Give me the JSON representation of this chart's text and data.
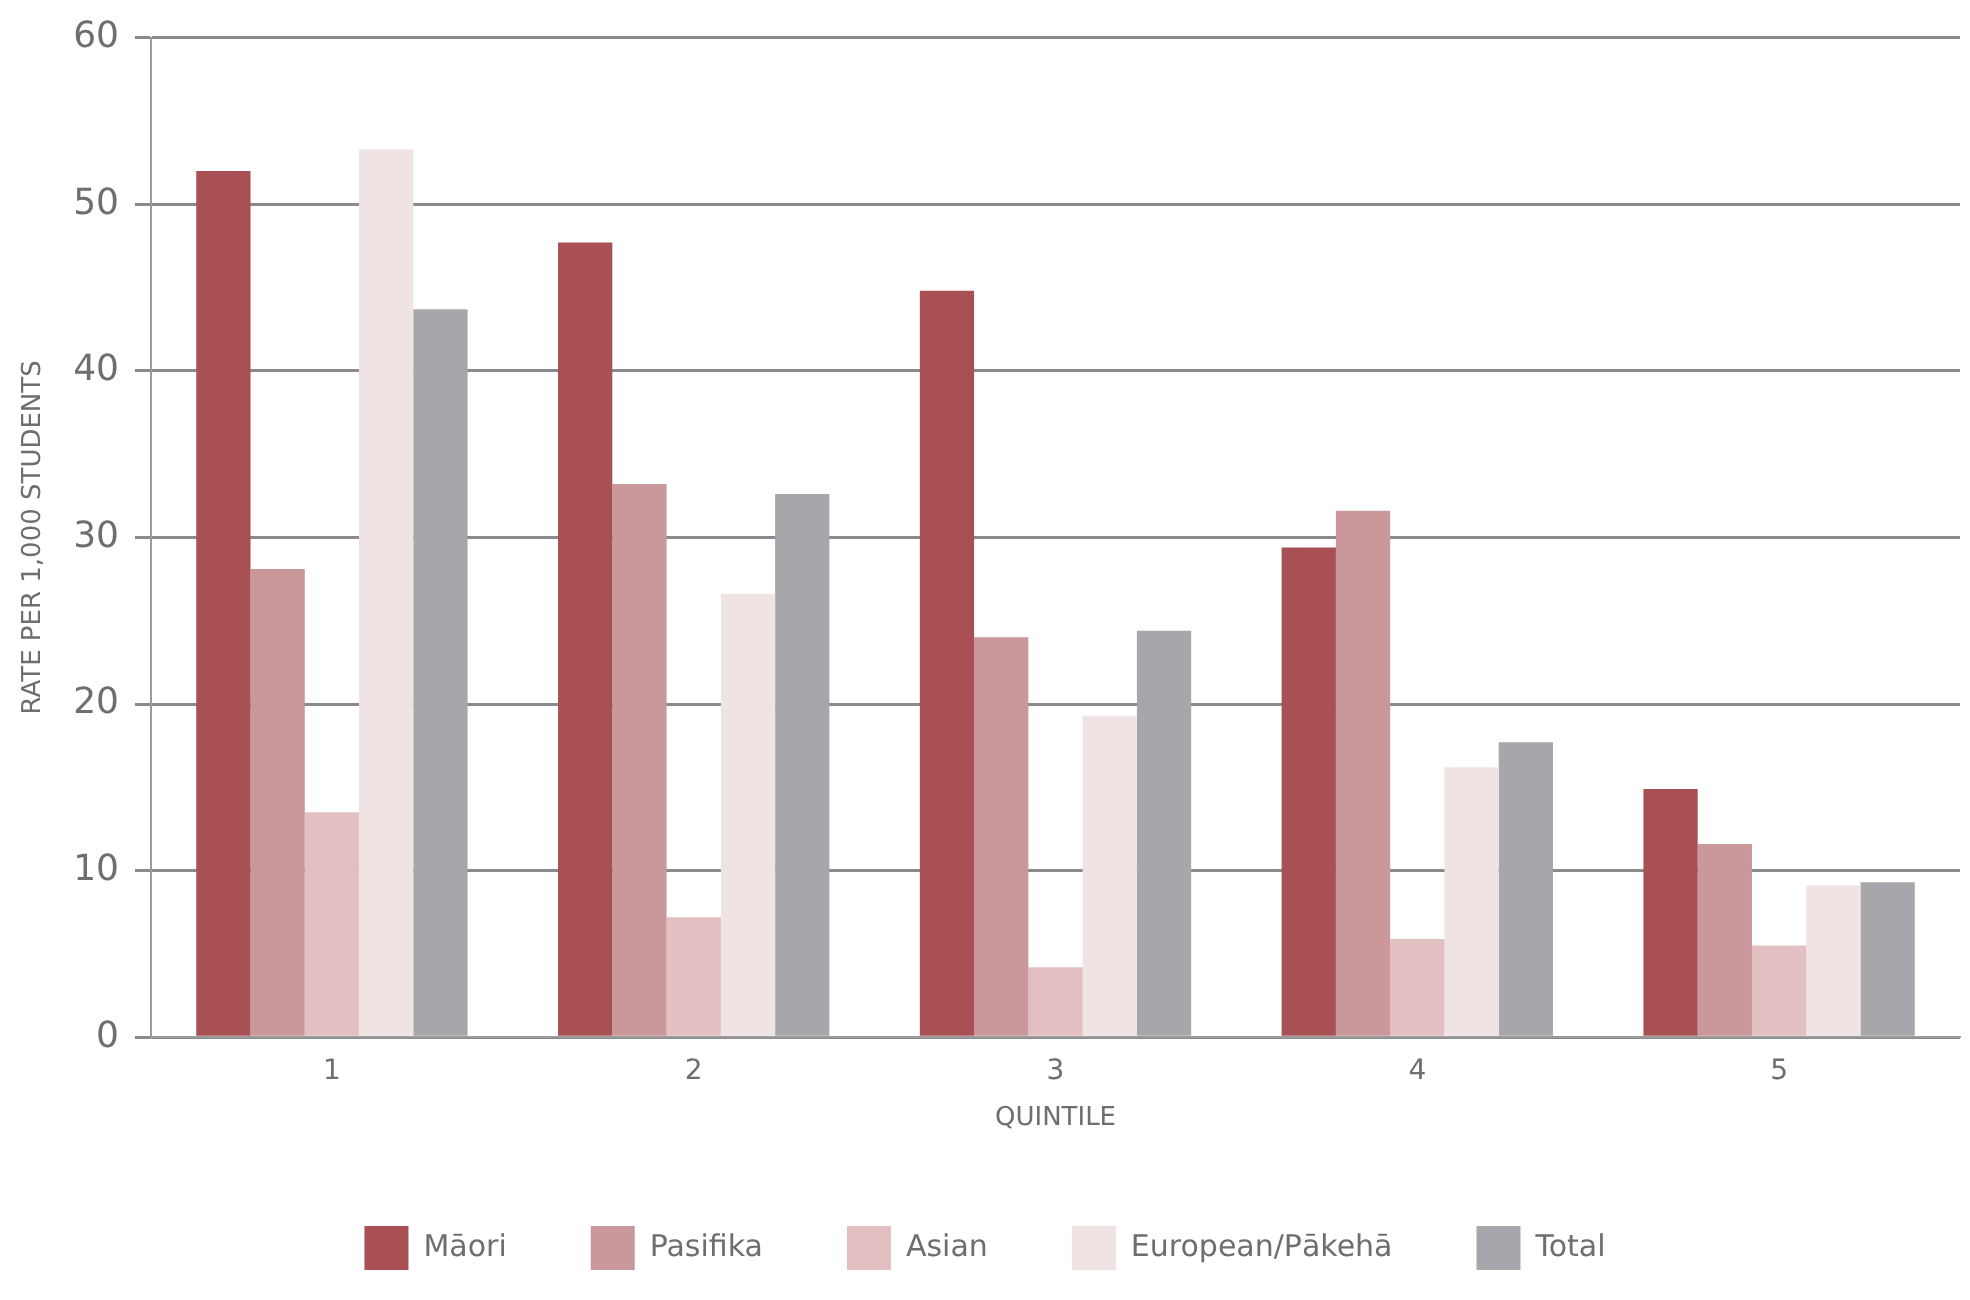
{
  "chart_data": {
    "type": "bar",
    "xlabel": "QUINTILE",
    "ylabel": "RATE PER 1,000 STUDENTS",
    "categories": [
      "1",
      "2",
      "3",
      "4",
      "5"
    ],
    "series": [
      {
        "name": "Māori",
        "color": "#a85054",
        "values": [
          52.0,
          47.7,
          44.8,
          29.4,
          14.9
        ]
      },
      {
        "name": "Pasifika",
        "color": "#ca979a",
        "values": [
          28.1,
          33.2,
          24.0,
          31.6,
          11.6
        ]
      },
      {
        "name": "Asian",
        "color": "#e2c0c2",
        "values": [
          13.5,
          7.2,
          4.2,
          5.9,
          5.5
        ]
      },
      {
        "name": "European/Pākehā",
        "color": "#f0e3e4",
        "values": [
          53.3,
          26.6,
          19.3,
          16.2,
          9.1
        ]
      },
      {
        "name": "Total",
        "color": "#a6a7ab",
        "values": [
          43.7,
          32.6,
          24.4,
          17.7,
          9.3
        ]
      }
    ],
    "ylim": [
      0,
      60
    ],
    "yticks": [
      0,
      10,
      20,
      30,
      40,
      50,
      60
    ],
    "grid": "y",
    "legend": "bottom"
  }
}
